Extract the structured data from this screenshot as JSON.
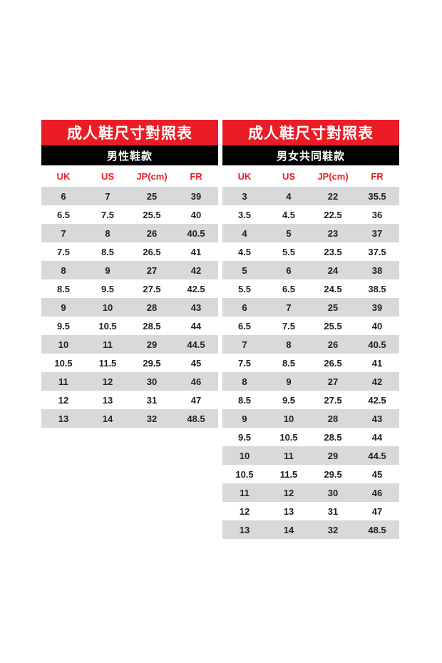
{
  "colors": {
    "red": "#EA1D26",
    "black": "#000000",
    "stripe": "#D7D9DA",
    "cell_text": "#232020",
    "page_background": "#FFFFFF"
  },
  "tables": [
    {
      "title": "成人鞋尺寸對照表",
      "subtitle": "男性鞋款",
      "columns": [
        "UK",
        "US",
        "JP(cm)",
        "FR"
      ],
      "rows": [
        [
          "6",
          "7",
          "25",
          "39"
        ],
        [
          "6.5",
          "7.5",
          "25.5",
          "40"
        ],
        [
          "7",
          "8",
          "26",
          "40.5"
        ],
        [
          "7.5",
          "8.5",
          "26.5",
          "41"
        ],
        [
          "8",
          "9",
          "27",
          "42"
        ],
        [
          "8.5",
          "9.5",
          "27.5",
          "42.5"
        ],
        [
          "9",
          "10",
          "28",
          "43"
        ],
        [
          "9.5",
          "10.5",
          "28.5",
          "44"
        ],
        [
          "10",
          "11",
          "29",
          "44.5"
        ],
        [
          "10.5",
          "11.5",
          "29.5",
          "45"
        ],
        [
          "11",
          "12",
          "30",
          "46"
        ],
        [
          "12",
          "13",
          "31",
          "47"
        ],
        [
          "13",
          "14",
          "32",
          "48.5"
        ]
      ]
    },
    {
      "title": "成人鞋尺寸對照表",
      "subtitle": "男女共同鞋款",
      "columns": [
        "UK",
        "US",
        "JP(cm)",
        "FR"
      ],
      "rows": [
        [
          "3",
          "4",
          "22",
          "35.5"
        ],
        [
          "3.5",
          "4.5",
          "22.5",
          "36"
        ],
        [
          "4",
          "5",
          "23",
          "37"
        ],
        [
          "4.5",
          "5.5",
          "23.5",
          "37.5"
        ],
        [
          "5",
          "6",
          "24",
          "38"
        ],
        [
          "5.5",
          "6.5",
          "24.5",
          "38.5"
        ],
        [
          "6",
          "7",
          "25",
          "39"
        ],
        [
          "6.5",
          "7.5",
          "25.5",
          "40"
        ],
        [
          "7",
          "8",
          "26",
          "40.5"
        ],
        [
          "7.5",
          "8.5",
          "26.5",
          "41"
        ],
        [
          "8",
          "9",
          "27",
          "42"
        ],
        [
          "8.5",
          "9.5",
          "27.5",
          "42.5"
        ],
        [
          "9",
          "10",
          "28",
          "43"
        ],
        [
          "9.5",
          "10.5",
          "28.5",
          "44"
        ],
        [
          "10",
          "11",
          "29",
          "44.5"
        ],
        [
          "10.5",
          "11.5",
          "29.5",
          "45"
        ],
        [
          "11",
          "12",
          "30",
          "46"
        ],
        [
          "12",
          "13",
          "31",
          "47"
        ],
        [
          "13",
          "14",
          "32",
          "48.5"
        ]
      ]
    }
  ]
}
